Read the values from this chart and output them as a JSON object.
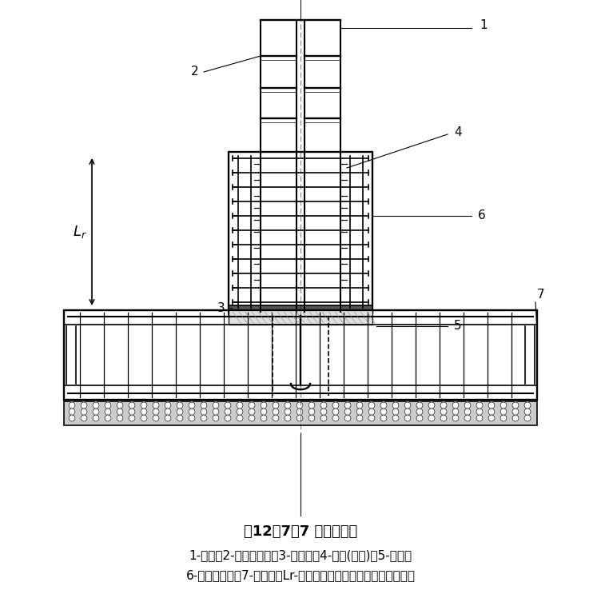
{
  "title": "图12．7．7 外包式柱脚",
  "caption_line1": "1-钢柱；2-水平加劲肋；3-柱底板；4-栓钉(可选)；5-锚栓；",
  "caption_line2": "6-外包混凝土；7-基础梁；Lr-外包混凝土顶部箍筋至柱底板的距离",
  "bg_color": "#ffffff",
  "line_color": "#000000",
  "lw": 1.2
}
